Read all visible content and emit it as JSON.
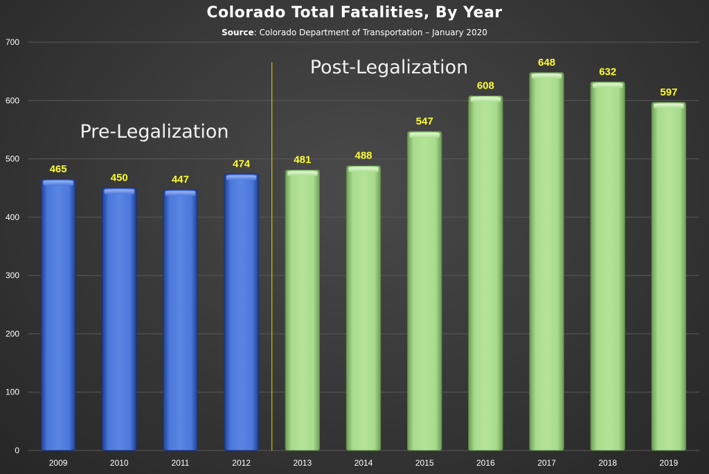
{
  "chart_data": {
    "type": "bar",
    "title": "Colorado Total Fatalities, By Year",
    "subtitle_label": "Source",
    "subtitle_text": ": Colorado Department of Transportation  – January 2020",
    "categories": [
      "2009",
      "2010",
      "2011",
      "2012",
      "2013",
      "2014",
      "2015",
      "2016",
      "2017",
      "2018",
      "2019"
    ],
    "values": [
      465,
      450,
      447,
      474,
      481,
      488,
      547,
      608,
      648,
      632,
      597
    ],
    "ylim": [
      0,
      700
    ],
    "yticks": [
      0,
      100,
      200,
      300,
      400,
      500,
      600,
      700
    ],
    "xlabel": "",
    "ylabel": "",
    "grid": true,
    "legend": "none",
    "annotations": [
      {
        "text": "Pre-Legalization"
      },
      {
        "text": "Post-Legalization"
      }
    ],
    "divider_after_category": "2012",
    "groups": {
      "pre_count": 4
    },
    "colors": {
      "pre": "#3f6fd6",
      "post": "#a6d98a",
      "value_label": "#ffff33",
      "divider": "#e8e000",
      "grid": "#5a5a5a",
      "axis_text": "#ffffff"
    }
  }
}
